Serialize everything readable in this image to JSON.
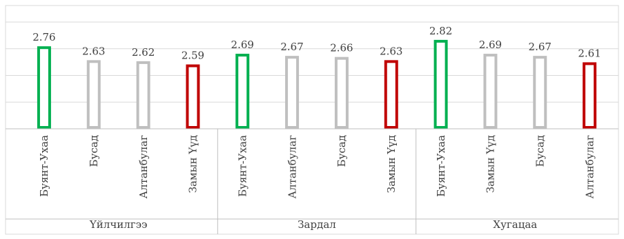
{
  "colors": {
    "best": "#00b050",
    "neutral": "#bfbfbf",
    "worst": "#c00000",
    "grid": "#d9d9d9",
    "axis": "#bfbfbf",
    "text": "#404040"
  },
  "chart_data": {
    "type": "bar",
    "title": "",
    "xlabel": "",
    "ylabel": "",
    "ylim": [
      2.0,
      3.0
    ],
    "grid": true,
    "groups": [
      {
        "name": "Үйлчилгээ",
        "bars": [
          {
            "label": "Буянт-Ухаа",
            "value": 2.76,
            "color_role": "best"
          },
          {
            "label": "Бусад",
            "value": 2.63,
            "color_role": "neutral"
          },
          {
            "label": "Алтанбулаг",
            "value": 2.62,
            "color_role": "neutral"
          },
          {
            "label": "Замын Үүд",
            "value": 2.59,
            "color_role": "worst"
          }
        ]
      },
      {
        "name": "Зардал",
        "bars": [
          {
            "label": "Буянт-Ухаа",
            "value": 2.69,
            "color_role": "best"
          },
          {
            "label": "Алтанбулаг",
            "value": 2.67,
            "color_role": "neutral"
          },
          {
            "label": "Бусад",
            "value": 2.66,
            "color_role": "neutral"
          },
          {
            "label": "Замын Үүд",
            "value": 2.63,
            "color_role": "worst"
          }
        ]
      },
      {
        "name": "Хугацаа",
        "bars": [
          {
            "label": "Буянт-Ухаа",
            "value": 2.82,
            "color_role": "best"
          },
          {
            "label": "Замын Үүд",
            "value": 2.69,
            "color_role": "neutral"
          },
          {
            "label": "Бусад",
            "value": 2.67,
            "color_role": "neutral"
          },
          {
            "label": "Алтанбулаг",
            "value": 2.61,
            "color_role": "worst"
          }
        ]
      }
    ]
  }
}
